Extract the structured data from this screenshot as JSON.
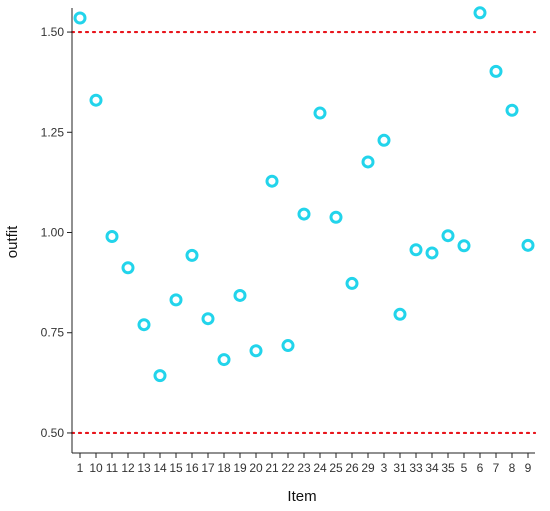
{
  "chart_data": {
    "type": "scatter",
    "xlabel": "Item",
    "ylabel": "outfit",
    "ylim": [
      0.45,
      1.56
    ],
    "y_ticks": [
      0.5,
      0.75,
      1.0,
      1.25,
      1.5
    ],
    "y_tick_labels": [
      "0.50",
      "0.75",
      "1.00",
      "1.25",
      "1.50"
    ],
    "categories": [
      "1",
      "10",
      "11",
      "12",
      "13",
      "14",
      "15",
      "16",
      "17",
      "18",
      "19",
      "20",
      "21",
      "22",
      "23",
      "24",
      "25",
      "26",
      "29",
      "3",
      "31",
      "33",
      "34",
      "35",
      "5",
      "6",
      "7",
      "8",
      "9"
    ],
    "values": [
      1.535,
      1.33,
      0.99,
      0.912,
      0.77,
      0.643,
      0.832,
      0.943,
      0.785,
      0.683,
      0.843,
      0.705,
      1.128,
      0.718,
      1.046,
      1.298,
      1.038,
      0.873,
      1.176,
      1.23,
      0.796,
      0.957,
      0.949,
      0.992,
      0.967,
      1.548,
      1.402,
      1.305,
      0.968
    ],
    "reference_lines": [
      0.5,
      1.5
    ],
    "point_color": "#22d4eb",
    "reference_line_color": "#e8141b",
    "grid": false,
    "legend": "none"
  }
}
